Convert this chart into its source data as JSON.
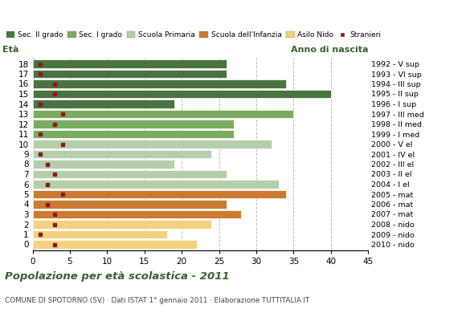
{
  "ages": [
    18,
    17,
    16,
    15,
    14,
    13,
    12,
    11,
    10,
    9,
    8,
    7,
    6,
    5,
    4,
    3,
    2,
    1,
    0
  ],
  "bar_values": [
    26,
    26,
    34,
    40,
    19,
    35,
    27,
    27,
    32,
    24,
    19,
    26,
    33,
    34,
    26,
    28,
    24,
    18,
    22
  ],
  "stranieri": [
    1,
    1,
    3,
    3,
    1,
    4,
    3,
    1,
    4,
    1,
    2,
    3,
    2,
    4,
    2,
    3,
    3,
    1,
    3
  ],
  "right_labels": [
    "1992 - V sup",
    "1993 - VI sup",
    "1994 - III sup",
    "1995 - II sup",
    "1996 - I sup",
    "1997 - III med",
    "1998 - II med",
    "1999 - I med",
    "2000 - V el",
    "2001 - IV el",
    "2002 - III el",
    "2003 - II el",
    "2004 - I el",
    "2005 - mat",
    "2006 - mat",
    "2007 - mat",
    "2008 - nido",
    "2009 - nido",
    "2010 - nido"
  ],
  "categories": {
    "Sec. II grado": {
      "ages": [
        14,
        15,
        16,
        17,
        18
      ],
      "color": "#4a7340"
    },
    "Sec. I grado": {
      "ages": [
        11,
        12,
        13
      ],
      "color": "#7aab5e"
    },
    "Scuola Primaria": {
      "ages": [
        6,
        7,
        8,
        9,
        10
      ],
      "color": "#b5ceaa"
    },
    "Scuola dell'Infanzia": {
      "ages": [
        3,
        4,
        5
      ],
      "color": "#cc7a2f"
    },
    "Asilo Nido": {
      "ages": [
        0,
        1,
        2
      ],
      "color": "#f5d080"
    }
  },
  "stranieri_color": "#8b1a1a",
  "grid_color": "#bbbbbb",
  "title": "Popolazione per età scolastica - 2011",
  "subtitle": "COMUNE DI SPOTORNO (SV) · Dati ISTAT 1° gennaio 2011 · Elaborazione TUTTITALIA.IT",
  "xlabel_left": "Età",
  "xlabel_right": "Anno di nascita",
  "xlim": [
    0,
    45
  ],
  "xticks": [
    0,
    5,
    10,
    15,
    20,
    25,
    30,
    35,
    40,
    45
  ]
}
